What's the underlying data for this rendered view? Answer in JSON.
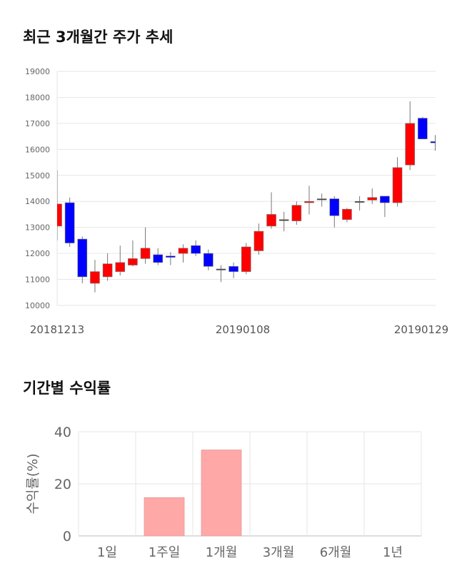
{
  "section1": {
    "title": "최근 3개월간 주가 추세"
  },
  "section2": {
    "title": "기간별 수익률"
  },
  "chart_data": [
    {
      "type": "candlestick",
      "ylim": [
        10000,
        19000
      ],
      "yticks": [
        "10000",
        "11000",
        "12000",
        "13000",
        "14000",
        "15000",
        "16000",
        "17000",
        "18000",
        "19000"
      ],
      "xlabels": [
        "20181213",
        "20190108",
        "20190129"
      ],
      "up_color": "#ff0000",
      "down_color": "#0000ff",
      "grid": true,
      "candles": [
        [
          13050,
          13900,
          15200,
          12500
        ],
        [
          13950,
          12400,
          14150,
          12250
        ],
        [
          12550,
          11100,
          12650,
          10850
        ],
        [
          10850,
          11300,
          11750,
          10500
        ],
        [
          11100,
          11600,
          12000,
          10950
        ],
        [
          11300,
          11650,
          12300,
          11150
        ],
        [
          11550,
          11800,
          12500,
          11500
        ],
        [
          11800,
          12200,
          13000,
          11600
        ],
        [
          11950,
          11650,
          12200,
          11550
        ],
        [
          11900,
          11850,
          12050,
          11550
        ],
        [
          12000,
          12200,
          12350,
          11650
        ],
        [
          12300,
          12000,
          12500,
          11900
        ],
        [
          12000,
          11500,
          12150,
          11350
        ],
        [
          11400,
          11400,
          11550,
          10900
        ],
        [
          11500,
          11300,
          11650,
          11050
        ],
        [
          11300,
          12250,
          12400,
          11200
        ],
        [
          12100,
          12850,
          13150,
          11950
        ],
        [
          13050,
          13500,
          14350,
          12950
        ],
        [
          13300,
          13300,
          13600,
          12850
        ],
        [
          13250,
          13850,
          14000,
          13100
        ],
        [
          13950,
          14000,
          14600,
          13500
        ],
        [
          14100,
          14100,
          14300,
          13800
        ],
        [
          14100,
          13450,
          14200,
          13000
        ],
        [
          13300,
          13700,
          13750,
          13200
        ],
        [
          14000,
          14000,
          14200,
          13650
        ],
        [
          14050,
          14150,
          14500,
          13900
        ],
        [
          14200,
          13950,
          14200,
          13400
        ],
        [
          13950,
          15300,
          15700,
          13800
        ],
        [
          15400,
          17000,
          17850,
          15200
        ],
        [
          17200,
          16400,
          17250,
          16400
        ],
        [
          16300,
          16250,
          16550,
          15950
        ]
      ]
    },
    {
      "type": "bar",
      "categories": [
        "1일",
        "1주일",
        "1개월",
        "3개월",
        "6개월",
        "1년"
      ],
      "values": [
        null,
        14.7,
        33.0,
        null,
        null,
        null
      ],
      "ylabel": "수익률(%)",
      "ylim": [
        0,
        40
      ],
      "yticks": [
        "0",
        "20",
        "40"
      ],
      "bar_color": "#ffa8a8",
      "grid": true
    }
  ]
}
